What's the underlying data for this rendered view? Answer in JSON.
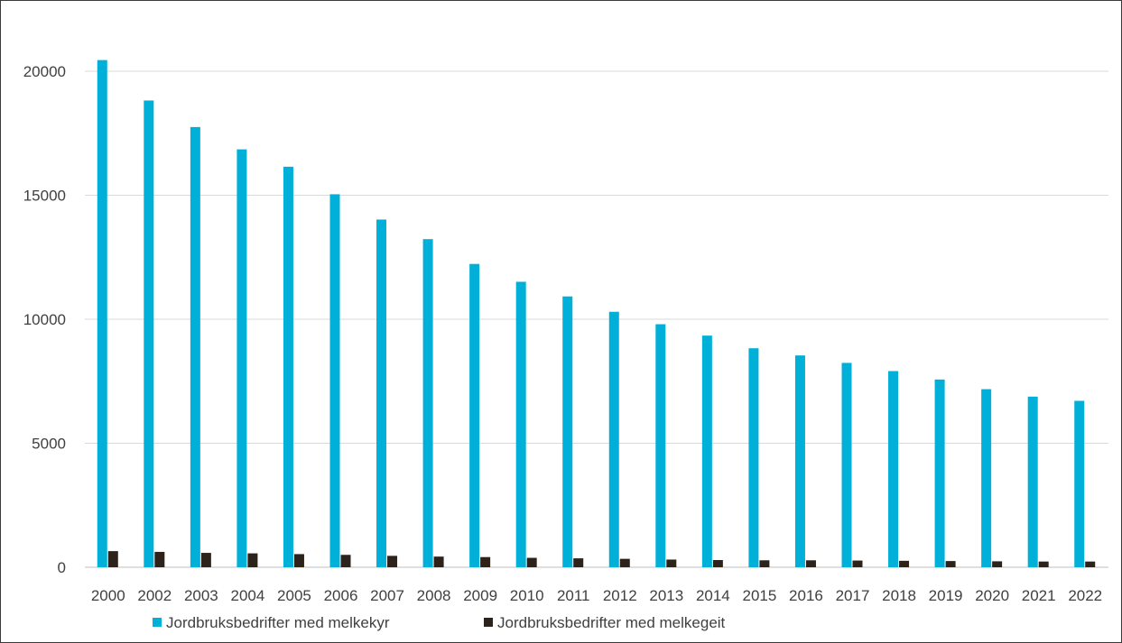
{
  "chart_data": {
    "type": "bar",
    "categories": [
      "2000",
      "2002",
      "2003",
      "2004",
      "2005",
      "2006",
      "2007",
      "2008",
      "2009",
      "2010",
      "2011",
      "2012",
      "2013",
      "2014",
      "2015",
      "2016",
      "2017",
      "2018",
      "2019",
      "2020",
      "2021",
      "2022"
    ],
    "series": [
      {
        "name": "Jordbruksbedrifter med melkekyr",
        "color": "#00b0d8",
        "values": [
          20450,
          18820,
          17750,
          16850,
          16150,
          15040,
          14020,
          13230,
          12230,
          11510,
          10920,
          10300,
          9800,
          9340,
          8830,
          8540,
          8240,
          7910,
          7570,
          7180,
          6880,
          6710
        ]
      },
      {
        "name": "Jordbruksbedrifter med melkegeit",
        "color": "#2e231a",
        "values": [
          650,
          620,
          580,
          560,
          530,
          500,
          460,
          430,
          410,
          380,
          360,
          340,
          310,
          290,
          280,
          280,
          270,
          260,
          250,
          240,
          230,
          230
        ]
      }
    ],
    "yticks": [
      0,
      5000,
      10000,
      15000,
      20000
    ],
    "ylim": [
      0,
      21500
    ],
    "grid": true,
    "legend_position": "bottom"
  }
}
